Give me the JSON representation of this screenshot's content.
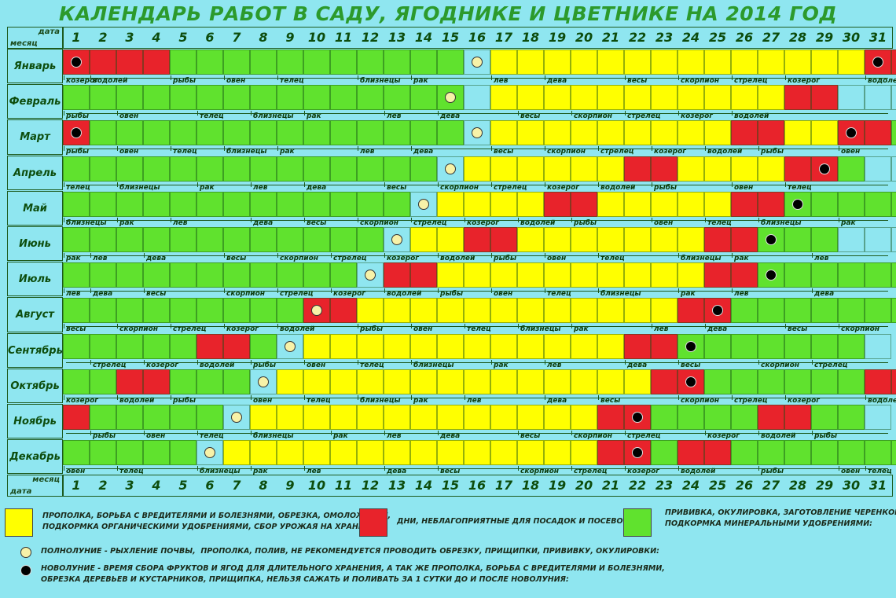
{
  "title": "КАЛЕНДАРЬ РАБОТ В САДУ, ЯГОДНИКЕ И ЦВЕТНИКЕ НА 2014 ГОД",
  "corner_top": {
    "top": "дата",
    "bottom": "месяц"
  },
  "corner_bottom": {
    "top": "месяц",
    "bottom": "дата"
  },
  "days": [
    "1",
    "2",
    "3",
    "4",
    "5",
    "6",
    "7",
    "8",
    "9",
    "10",
    "11",
    "12",
    "13",
    "14",
    "15",
    "16",
    "17",
    "18",
    "19",
    "20",
    "21",
    "22",
    "23",
    "24",
    "25",
    "26",
    "27",
    "28",
    "29",
    "30",
    "31"
  ],
  "colors": {
    "green": "#60e22e",
    "yellow": "#ffff00",
    "red": "#e8232b",
    "blue": "#8fe6f0"
  },
  "months": [
    {
      "name": "Январь",
      "cells": "RRRRGGGGGGGGGGGBYYYYYYYYYYYYYYRR",
      "full_moon": 16,
      "new_moon": [
        1,
        31
      ],
      "zodiac": [
        [
          1,
          "козерог"
        ],
        [
          2,
          "водолей"
        ],
        [
          5,
          "рыбы"
        ],
        [
          7,
          "овен"
        ],
        [
          9,
          "телец"
        ],
        [
          12,
          "близнецы"
        ],
        [
          14,
          "рак"
        ],
        [
          17,
          "лев"
        ],
        [
          19,
          "дева"
        ],
        [
          22,
          "весы"
        ],
        [
          24,
          "скорпион"
        ],
        [
          26,
          "стрелец"
        ],
        [
          28,
          "козерог"
        ],
        [
          31,
          "водолей"
        ]
      ]
    },
    {
      "name": "Февраль",
      "cells": "GGGGGGGGGGGGGGGBYYYYYYYYYYYRRBBB",
      "full_moon": 15,
      "new_moon": [],
      "zodiac": [
        [
          1,
          "рыбы"
        ],
        [
          3,
          "овен"
        ],
        [
          6,
          "телец"
        ],
        [
          8,
          "близнецы"
        ],
        [
          10,
          "рак"
        ],
        [
          13,
          "лев"
        ],
        [
          15,
          "дева"
        ],
        [
          18,
          "весы"
        ],
        [
          20,
          "скорпион"
        ],
        [
          22,
          "стрелец"
        ],
        [
          24,
          "козерог"
        ],
        [
          26,
          "водолей"
        ]
      ]
    },
    {
      "name": "Март",
      "cells": "RGGGGGGGGGGGGGGBYYYYYYYYYRRYYRRG",
      "full_moon": 16,
      "new_moon": [
        1,
        30
      ],
      "zodiac": [
        [
          1,
          "рыбы"
        ],
        [
          3,
          "овен"
        ],
        [
          5,
          "телец"
        ],
        [
          7,
          "близнецы"
        ],
        [
          9,
          "рак"
        ],
        [
          12,
          "лев"
        ],
        [
          14,
          "дева"
        ],
        [
          17,
          "весы"
        ],
        [
          19,
          "скорпион"
        ],
        [
          21,
          "стрелец"
        ],
        [
          23,
          "козерог"
        ],
        [
          25,
          "водолей"
        ],
        [
          27,
          "рыбы"
        ],
        [
          30,
          "овен"
        ]
      ]
    },
    {
      "name": "Апрель",
      "cells": "GGGGGGGGGGGGGGBYYYYYYRRYYYYRRGBB",
      "full_moon": 15,
      "new_moon": [
        29
      ],
      "zodiac": [
        [
          1,
          "телец"
        ],
        [
          3,
          "близнецы"
        ],
        [
          6,
          "рак"
        ],
        [
          8,
          "лев"
        ],
        [
          10,
          "дева"
        ],
        [
          13,
          "весы"
        ],
        [
          15,
          "скорпион"
        ],
        [
          17,
          "стрелец"
        ],
        [
          19,
          "козерог"
        ],
        [
          21,
          "водолей"
        ],
        [
          23,
          "рыбы"
        ],
        [
          26,
          "овен"
        ],
        [
          28,
          "телец"
        ]
      ]
    },
    {
      "name": "Май",
      "cells": "GGGGGGGGGGGGGBYYYYRRYYYYYRRGGGGG",
      "full_moon": 14,
      "new_moon": [
        28
      ],
      "zodiac": [
        [
          1,
          "близнецы"
        ],
        [
          3,
          "рак"
        ],
        [
          5,
          "лев"
        ],
        [
          8,
          "дева"
        ],
        [
          10,
          "весы"
        ],
        [
          12,
          "скорпион"
        ],
        [
          14,
          "стрелец"
        ],
        [
          16,
          "козерог"
        ],
        [
          18,
          "водолей"
        ],
        [
          20,
          "рыбы"
        ],
        [
          23,
          "овен"
        ],
        [
          25,
          "телец"
        ],
        [
          27,
          "близнецы"
        ],
        [
          30,
          "рак"
        ]
      ]
    },
    {
      "name": "Июнь",
      "cells": "GGGGGGGGGGGGBYYRRYYYYYYYRRGGGBBB",
      "full_moon": 13,
      "new_moon": [
        27
      ],
      "zodiac": [
        [
          1,
          "рак"
        ],
        [
          2,
          "лев"
        ],
        [
          4,
          "дева"
        ],
        [
          7,
          "весы"
        ],
        [
          9,
          "скорпион"
        ],
        [
          11,
          "стрелец"
        ],
        [
          13,
          "козерог"
        ],
        [
          15,
          "водолей"
        ],
        [
          17,
          "рыбы"
        ],
        [
          19,
          "овен"
        ],
        [
          21,
          "телец"
        ],
        [
          24,
          "близнецы"
        ],
        [
          26,
          "рак"
        ],
        [
          29,
          "лев"
        ]
      ]
    },
    {
      "name": "Июль",
      "cells": "GGGGGGGGGGGBRRYYYYYYYYYYRRGGGGGG",
      "full_moon": 12,
      "new_moon": [
        27
      ],
      "zodiac": [
        [
          1,
          "лев"
        ],
        [
          2,
          "дева"
        ],
        [
          4,
          "весы"
        ],
        [
          7,
          "скорпион"
        ],
        [
          9,
          "стрелец"
        ],
        [
          11,
          "козерог"
        ],
        [
          13,
          "водолей"
        ],
        [
          15,
          "рыбы"
        ],
        [
          17,
          "овен"
        ],
        [
          19,
          "телец"
        ],
        [
          21,
          "близнецы"
        ],
        [
          24,
          "рак"
        ],
        [
          26,
          "лев"
        ],
        [
          29,
          "дева"
        ]
      ]
    },
    {
      "name": "Август",
      "cells": "GGGGGGGGGRRYYYYYYYYYYYYRRGGGGGGG",
      "full_moon": 10,
      "new_moon": [
        25
      ],
      "zodiac": [
        [
          1,
          "весы"
        ],
        [
          3,
          "скорпион"
        ],
        [
          5,
          "стрелец"
        ],
        [
          7,
          "козерог"
        ],
        [
          9,
          "водолей"
        ],
        [
          12,
          "рыбы"
        ],
        [
          14,
          "овен"
        ],
        [
          16,
          "телец"
        ],
        [
          18,
          "близнецы"
        ],
        [
          20,
          "рак"
        ],
        [
          23,
          "лев"
        ],
        [
          25,
          "дева"
        ],
        [
          28,
          "весы"
        ],
        [
          30,
          "скорпион"
        ]
      ]
    },
    {
      "name": "Сентябрь",
      "cells": "GGGGGRRGBYYYYYYYYYYYYRRGGGGGGGB",
      "full_moon": 9,
      "new_moon": [
        24
      ],
      "zodiac": [
        [
          2,
          "стрелец"
        ],
        [
          4,
          "козерог"
        ],
        [
          6,
          "водолей"
        ],
        [
          8,
          "рыбы"
        ],
        [
          10,
          "овен"
        ],
        [
          12,
          "телец"
        ],
        [
          14,
          "близнецы"
        ],
        [
          17,
          "рак"
        ],
        [
          19,
          "лев"
        ],
        [
          22,
          "дева"
        ],
        [
          24,
          "весы"
        ],
        [
          27,
          "скорпион"
        ],
        [
          29,
          "стрелец"
        ]
      ]
    },
    {
      "name": "Октябрь",
      "cells": "GGRRGGGBYYYYYYYYYYYYYYRRGGGGGGRR",
      "full_moon": 8,
      "new_moon": [
        24
      ],
      "zodiac": [
        [
          1,
          "козерог"
        ],
        [
          3,
          "водолей"
        ],
        [
          5,
          "рыбы"
        ],
        [
          8,
          "овен"
        ],
        [
          10,
          "телец"
        ],
        [
          12,
          "близнецы"
        ],
        [
          14,
          "рак"
        ],
        [
          16,
          "лев"
        ],
        [
          19,
          "дева"
        ],
        [
          21,
          "весы"
        ],
        [
          24,
          "скорпион"
        ],
        [
          26,
          "стрелец"
        ],
        [
          28,
          "козерог"
        ],
        [
          31,
          "водолей"
        ]
      ]
    },
    {
      "name": "Ноябрь",
      "cells": "RGGGGGBYYYYYYYYYYYYYRRGGGGRRGGB",
      "full_moon": 7,
      "new_moon": [
        22
      ],
      "zodiac": [
        [
          2,
          "рыбы"
        ],
        [
          4,
          "овен"
        ],
        [
          6,
          "телец"
        ],
        [
          8,
          "близнецы"
        ],
        [
          11,
          "рак"
        ],
        [
          13,
          "лев"
        ],
        [
          15,
          "дева"
        ],
        [
          18,
          "весы"
        ],
        [
          20,
          "скорпион"
        ],
        [
          22,
          "стрелец"
        ],
        [
          25,
          "козерог"
        ],
        [
          27,
          "водолей"
        ],
        [
          29,
          "рыбы"
        ]
      ]
    },
    {
      "name": "Декабрь",
      "cells": "GGGGGBYYYYYYYYYYYYYYRRGRRGGGGGGG",
      "full_moon": 6,
      "new_moon": [
        22
      ],
      "zodiac": [
        [
          1,
          "овен"
        ],
        [
          3,
          "телец"
        ],
        [
          6,
          "близнецы"
        ],
        [
          8,
          "рак"
        ],
        [
          10,
          "лев"
        ],
        [
          13,
          "дева"
        ],
        [
          15,
          "весы"
        ],
        [
          18,
          "скорпион"
        ],
        [
          20,
          "стрелец"
        ],
        [
          22,
          "козерог"
        ],
        [
          24,
          "водолей"
        ],
        [
          27,
          "рыбы"
        ],
        [
          30,
          "овен"
        ],
        [
          31,
          "телец"
        ]
      ]
    }
  ],
  "legend": {
    "yellow_text": "ПРОПОЛКА, БОРЬБА С ВРЕДИТЕЛЯМИ И БОЛЕЗНЯМИ, ОБРЕЗКА, ОМОЛОЖЕНИЕ,\nПОДКОРМКА ОРГАНИЧЕСКИМИ УДОБРЕНИЯМИ, СБОР УРОЖАЯ НА ХРАНЕНИЕ:",
    "red_text": "ДНИ, НЕБЛАГОПРИЯТНЫЕ ДЛЯ ПОСАДОК И ПОСЕВОВ:",
    "green_text": "ПРИВИВКА, ОКУЛИРОВКА, ЗАГОТОВЛЕНИЕ ЧЕРЕНКОВ,\nПОДКОРМКА МИНЕРАЛЬНЫМИ УДОБРЕНИЯМИ:",
    "full_moon_text": "ПОЛНОЛУНИЕ - РЫХЛЕНИЕ ПОЧВЫ,  ПРОПОЛКА, ПОЛИВ, НЕ РЕКОМЕНДУЕТСЯ ПРОВОДИТЬ ОБРЕЗКУ, ПРИЩИПКИ, ПРИВИВКУ, ОКУЛИРОВКИ:",
    "new_moon_text": "НОВОЛУНИЕ - ВРЕМЯ СБОРА ФРУКТОВ И ЯГОД ДЛЯ ДЛИТЕЛЬНОГО ХРАНЕНИЯ, А ТАК ЖЕ ПРОПОЛКА, БОРЬБА С ВРЕДИТЕЛЯМИ И БОЛЕЗНЯМИ,\nОБРЕЗКА ДЕРЕВЬЕВ И КУСТАРНИКОВ, ПРИЩИПКА, НЕЛЬЗЯ САЖАТЬ И ПОЛИВАТЬ ЗА 1 СУТКИ ДО И ПОСЛЕ НОВОЛУНИЯ:"
  }
}
